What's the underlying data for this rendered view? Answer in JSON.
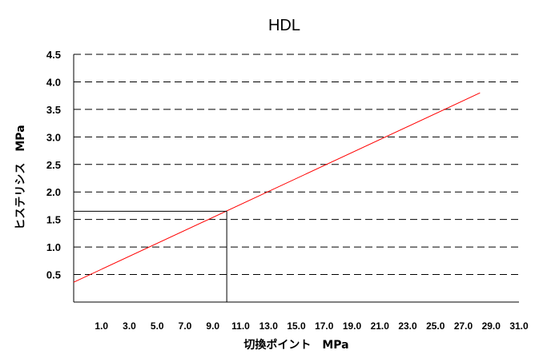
{
  "chart_data": {
    "type": "line",
    "title": "HDL",
    "xlabel": "切換ポイント　MPa",
    "ylabel": "ヒステリシス　MPa",
    "xlim": [
      -1.0,
      31.0
    ],
    "ylim": [
      0,
      4.5
    ],
    "x_ticks": [
      "1.0",
      "3.0",
      "5.0",
      "7.0",
      "9.0",
      "11.0",
      "13.0",
      "15.0",
      "17.0",
      "19.0",
      "21.0",
      "23.0",
      "25.0",
      "27.0",
      "29.0",
      "31.0"
    ],
    "y_ticks": [
      "0.5",
      "1.0",
      "1.5",
      "2.0",
      "2.5",
      "3.0",
      "3.5",
      "4.0",
      "4.5"
    ],
    "grid": "horizontal-dashed",
    "series": [
      {
        "color": "#ff0000",
        "x": [
          -1.0,
          28.2
        ],
        "y": [
          0.36,
          3.8
        ]
      }
    ],
    "reference_lines": {
      "x": 10.0,
      "y": 1.65,
      "color": "#000000"
    }
  }
}
